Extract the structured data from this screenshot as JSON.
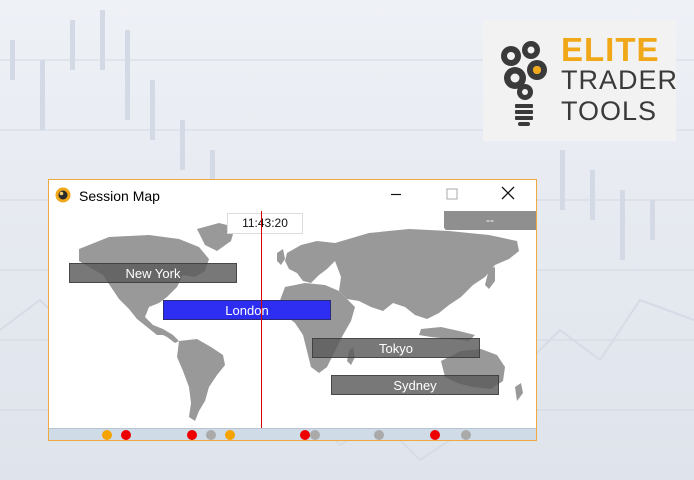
{
  "logo": {
    "line1": "ELITE",
    "line2": "TRADER",
    "line3": "TOOLS",
    "accent": "#f0a818",
    "text_color": "#3a3a3a"
  },
  "window": {
    "title": "Session Map",
    "icon": "gold-orb-icon",
    "minimize": "—",
    "maximize": "☐",
    "close": "✕",
    "clock": "11:43:20",
    "corner_button": "--"
  },
  "sessions": [
    {
      "name": "New York",
      "color": "#6e6e6e",
      "active": false
    },
    {
      "name": "London",
      "color": "#2e2ef2",
      "active": true
    },
    {
      "name": "Tokyo",
      "color": "#6e6e6e",
      "active": false
    },
    {
      "name": "Sydney",
      "color": "#6e6e6e",
      "active": false
    }
  ],
  "timeline_markers": [
    {
      "color": "#f5a300"
    },
    {
      "color": "#ee0000"
    },
    {
      "color": "#ee0000"
    },
    {
      "color": "#aaaaaa"
    },
    {
      "color": "#f5a300"
    },
    {
      "color": "#ee0000"
    },
    {
      "color": "#aaaaaa"
    },
    {
      "color": "#aaaaaa"
    },
    {
      "color": "#ee0000"
    },
    {
      "color": "#aaaaaa"
    }
  ]
}
